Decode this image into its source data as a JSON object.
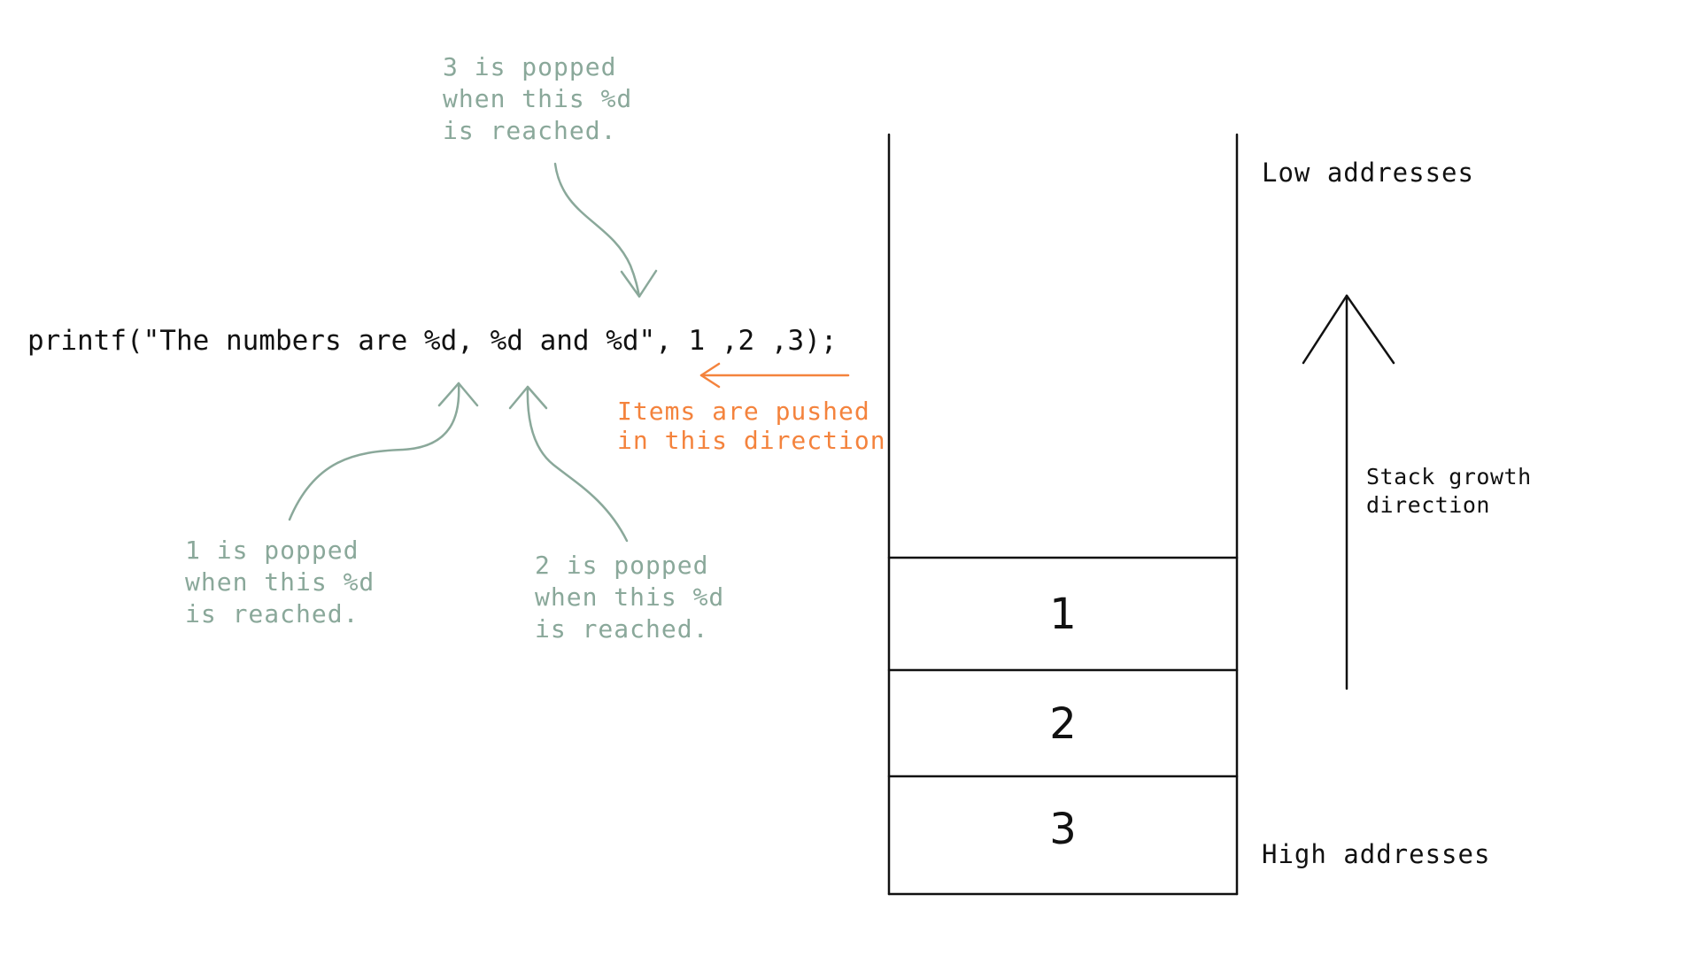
{
  "colors": {
    "annotation": "#8aa89a",
    "push_direction": "#f4833d",
    "ink": "#111111"
  },
  "code": {
    "statement": "printf(\"The numbers are %d, %d and %d\", 1 ,2 ,3);"
  },
  "annotations": {
    "pop_3": [
      "3 is popped",
      "when this %d",
      "is reached."
    ],
    "pop_1": [
      "1 is popped",
      "when this %d",
      "is reached."
    ],
    "pop_2": [
      "2 is popped",
      "when this %d",
      "is reached."
    ]
  },
  "push_note": [
    "Items are pushed",
    "in this direction"
  ],
  "stack": {
    "low_label": "Low addresses",
    "high_label": "High addresses",
    "growth_label": [
      "Stack growth",
      "direction"
    ],
    "cells": [
      "1",
      "2",
      "3"
    ]
  }
}
